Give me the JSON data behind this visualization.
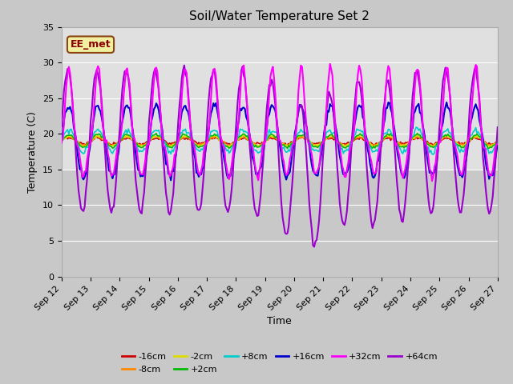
{
  "title": "Soil/Water Temperature Set 2",
  "xlabel": "Time",
  "ylabel": "Temperature (C)",
  "ylim": [
    0,
    35
  ],
  "yticks": [
    0,
    5,
    10,
    15,
    20,
    25,
    30,
    35
  ],
  "annotation": "EE_met",
  "series_colors": {
    "-16cm": "#cc0000",
    "-8cm": "#ff8800",
    "-2cm": "#dddd00",
    "+2cm": "#00bb00",
    "+8cm": "#00cccc",
    "+16cm": "#0000cc",
    "+32cm": "#ff00ff",
    "+64cm": "#9900cc"
  },
  "xtick_labels": [
    "Sep 12",
    "Sep 13",
    "Sep 14",
    "Sep 15",
    "Sep 16",
    "Sep 17",
    "Sep 18",
    "Sep 19",
    "Sep 20",
    "Sep 21",
    "Sep 22",
    "Sep 23",
    "Sep 24",
    "Sep 25",
    "Sep 26",
    "Sep 27"
  ],
  "num_days": 15,
  "pts_per_day": 24
}
